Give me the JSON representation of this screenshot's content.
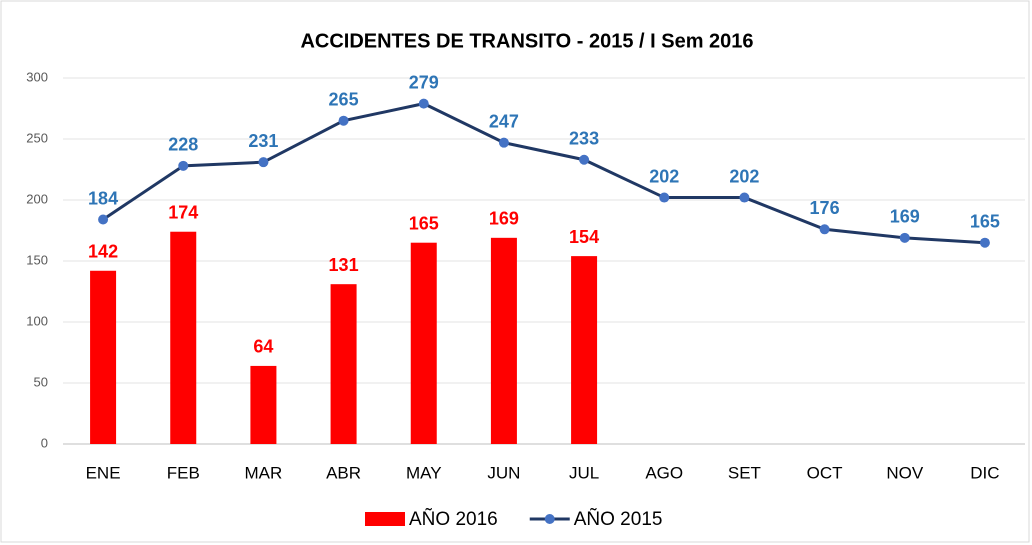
{
  "chart_data": {
    "type": "combo",
    "title": "ACCIDENTES DE TRANSITO - 2015 / I Sem 2016",
    "categories": [
      "ENE",
      "FEB",
      "MAR",
      "ABR",
      "MAY",
      "JUN",
      "JUL",
      "AGO",
      "SET",
      "OCT",
      "NOV",
      "DIC"
    ],
    "series": [
      {
        "name": "AÑO 2016",
        "type": "bar",
        "color": "#ff0000",
        "label_color": "#ff0000",
        "values": [
          142,
          174,
          64,
          131,
          165,
          169,
          154,
          null,
          null,
          null,
          null,
          null
        ]
      },
      {
        "name": "AÑO 2015",
        "type": "line",
        "color": "#203864",
        "marker_color": "#4472c4",
        "label_color": "#2e75b6",
        "values": [
          184,
          228,
          231,
          265,
          279,
          247,
          233,
          202,
          202,
          176,
          169,
          165
        ]
      }
    ],
    "ylim": [
      0,
      300
    ],
    "yticks": [
      0,
      50,
      100,
      150,
      200,
      250,
      300
    ],
    "grid": true,
    "legend": "bottom"
  }
}
